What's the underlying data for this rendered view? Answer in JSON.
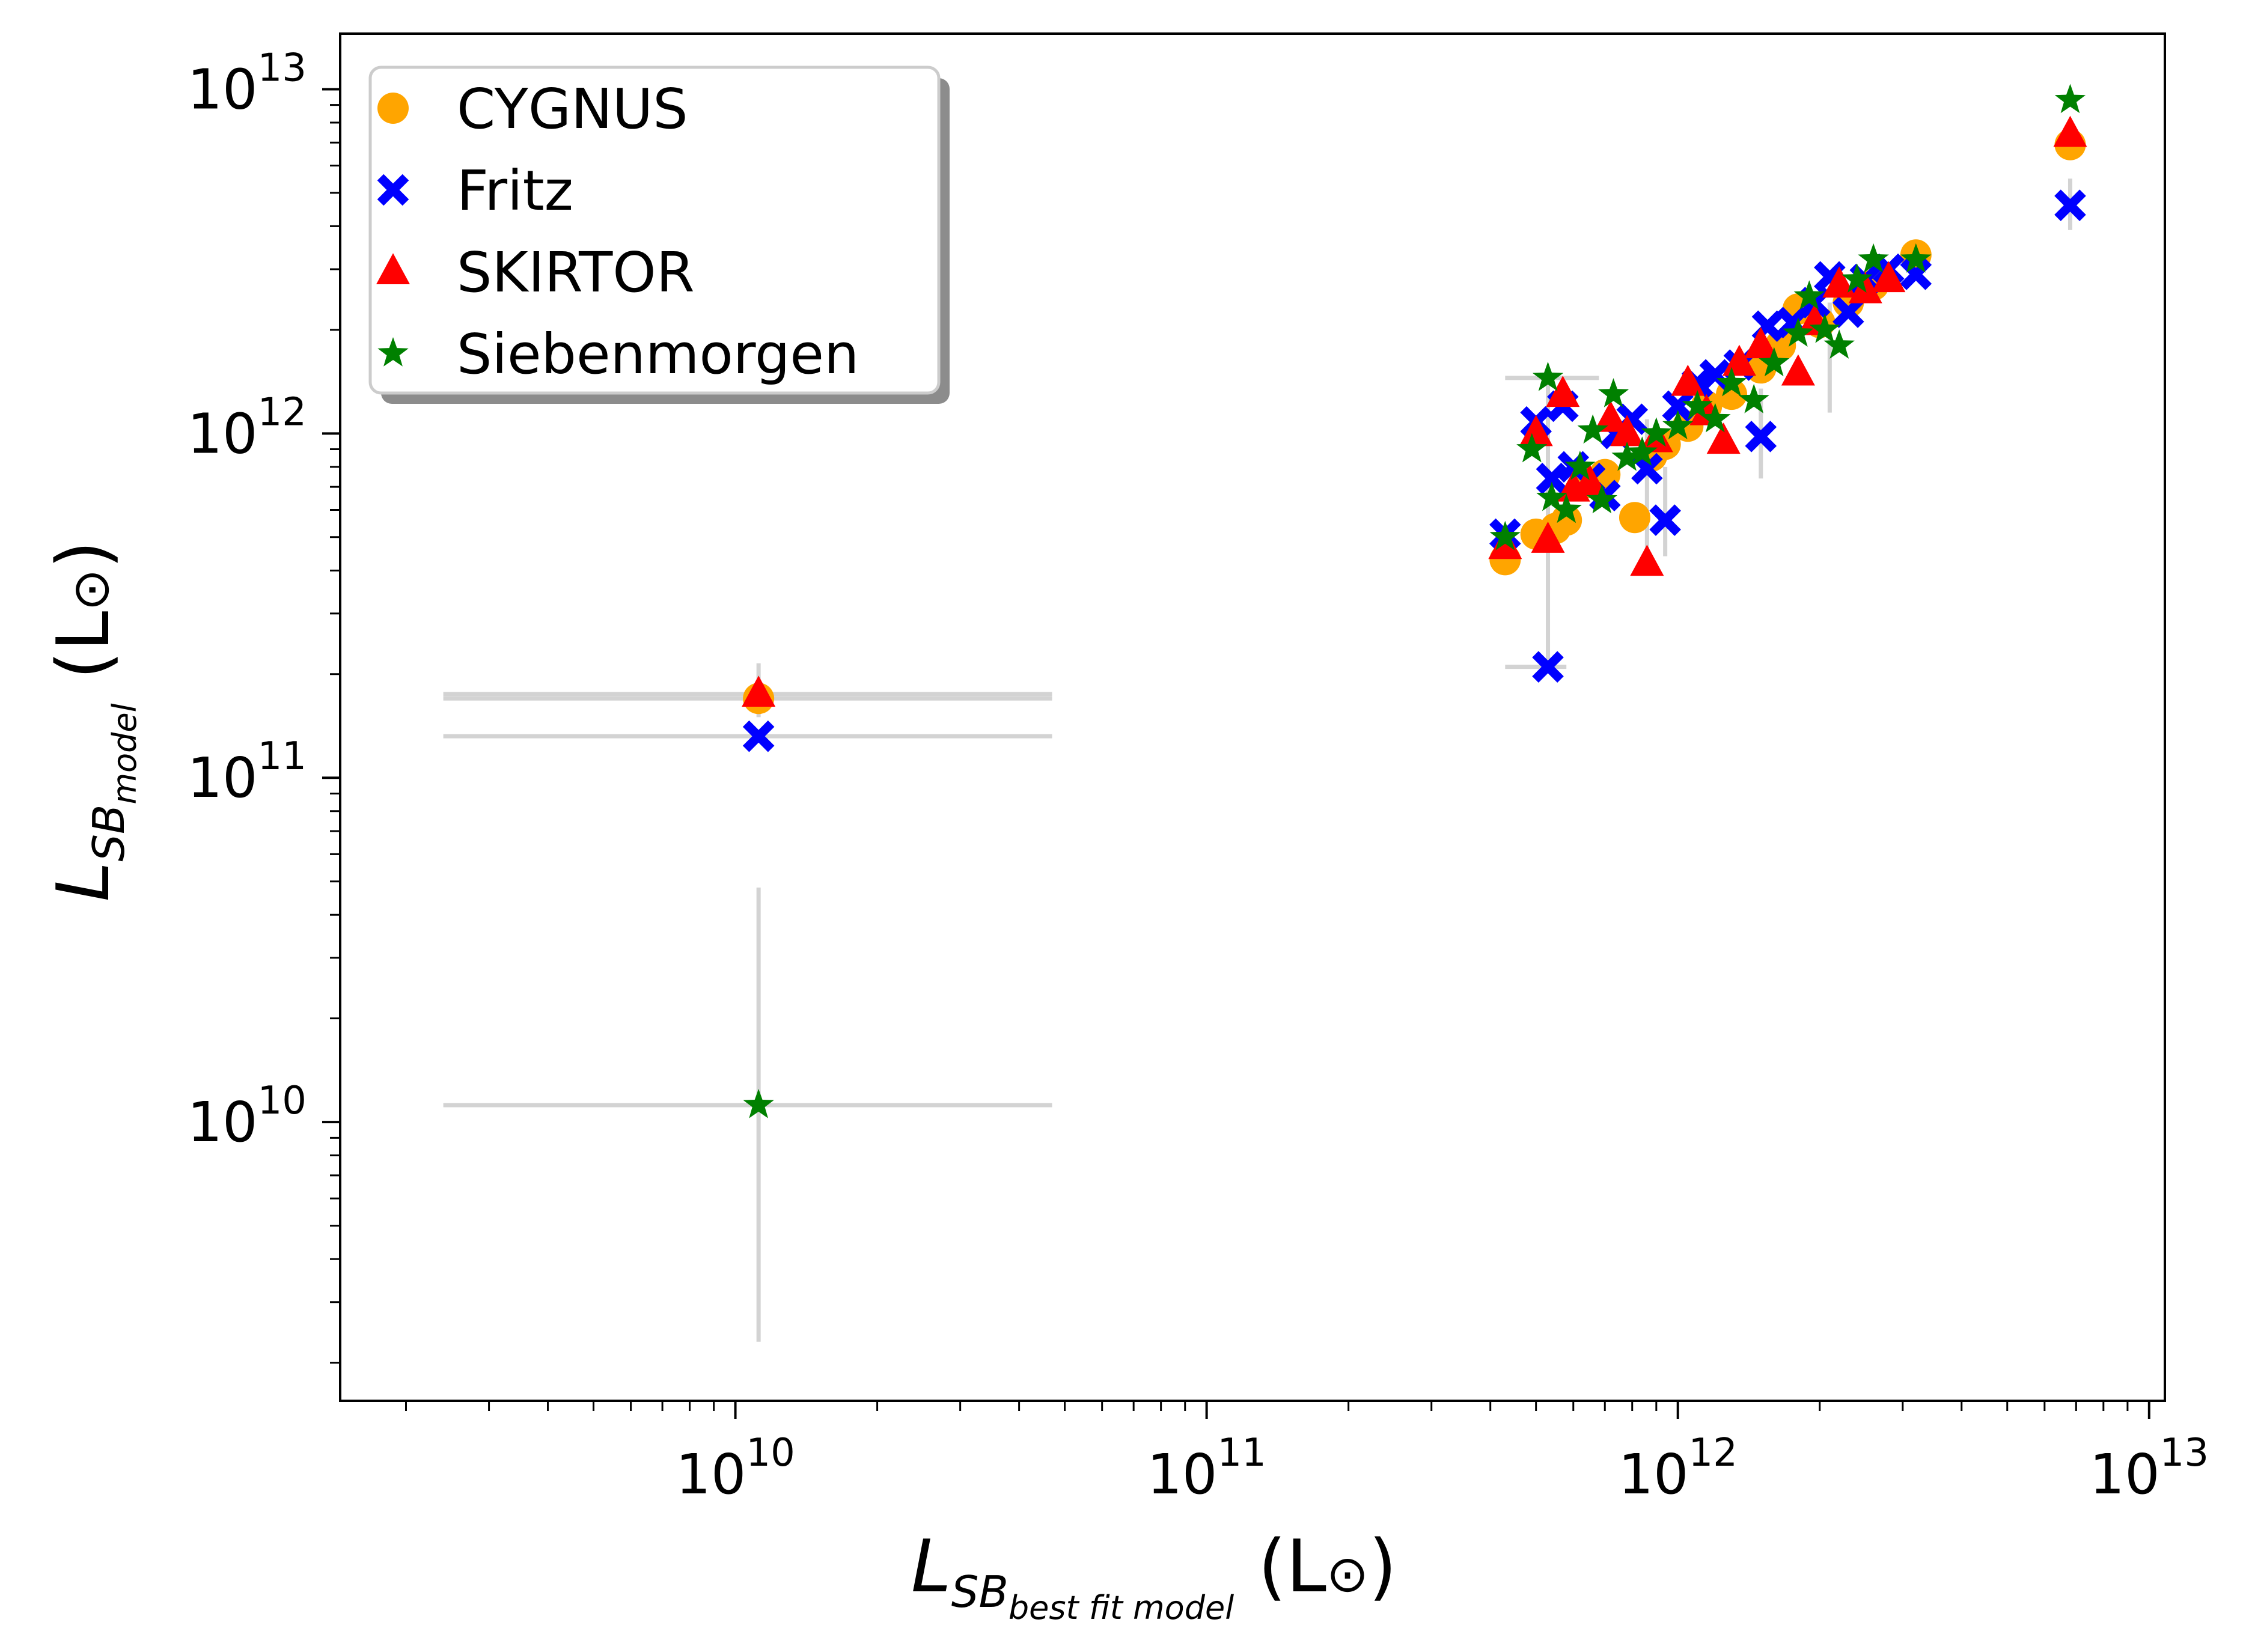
{
  "chart_data": {
    "type": "scatter",
    "title": "",
    "xscale": "log",
    "yscale": "log",
    "xlabel": {
      "main": "L",
      "sub": "SB",
      "subsub": "best fit model",
      "unit": "(L",
      "sun": "⊙",
      "close": ")"
    },
    "ylabel": {
      "main": "L",
      "sub": "SB",
      "subsub": "model",
      "unit": "(L",
      "sun": "⊙",
      "close": ")"
    },
    "xlim": [
      1450000000.0,
      10800000000000.0
    ],
    "ylim": [
      1550000000.0,
      14500000000000.0
    ],
    "major_exponents": [
      10,
      11,
      12,
      13
    ],
    "tick_base": "10",
    "legend_position": "upper-left",
    "series": [
      {
        "name": "CYGNUS",
        "marker": "circle",
        "color": "#ffa500",
        "points": [
          [
            11200000000.0,
            170000000000.0
          ],
          [
            430000000000.0,
            430000000000.0
          ],
          [
            500000000000.0,
            510000000000.0
          ],
          [
            550000000000.0,
            530000000000.0
          ],
          [
            580000000000.0,
            560000000000.0
          ],
          [
            650000000000.0,
            720000000000.0
          ],
          [
            700000000000.0,
            760000000000.0
          ],
          [
            810000000000.0,
            570000000000.0
          ],
          [
            880000000000.0,
            860000000000.0
          ],
          [
            940000000000.0,
            930000000000.0
          ],
          [
            1050000000000.0,
            1050000000000.0
          ],
          [
            1150000000000.0,
            1200000000000.0
          ],
          [
            1300000000000.0,
            1300000000000.0
          ],
          [
            1500000000000.0,
            1550000000000.0
          ],
          [
            1650000000000.0,
            1800000000000.0
          ],
          [
            1800000000000.0,
            2300000000000.0
          ],
          [
            2000000000000.0,
            2100000000000.0
          ],
          [
            2300000000000.0,
            2400000000000.0
          ],
          [
            2600000000000.0,
            2700000000000.0
          ],
          [
            3200000000000.0,
            3300000000000.0
          ],
          [
            6800000000000.0,
            6900000000000.0
          ]
        ]
      },
      {
        "name": "Fritz",
        "marker": "x",
        "color": "#0000ff",
        "points": [
          [
            11200000000.0,
            132000000000.0
          ],
          [
            430000000000.0,
            510000000000.0
          ],
          [
            500000000000.0,
            1080000000000.0
          ],
          [
            530000000000.0,
            210000000000.0
          ],
          [
            540000000000.0,
            740000000000.0
          ],
          [
            570000000000.0,
            1200000000000.0
          ],
          [
            600000000000.0,
            800000000000.0
          ],
          [
            650000000000.0,
            740000000000.0
          ],
          [
            700000000000.0,
            660000000000.0
          ],
          [
            740000000000.0,
            1000000000000.0
          ],
          [
            800000000000.0,
            1100000000000.0
          ],
          [
            860000000000.0,
            790000000000.0
          ],
          [
            940000000000.0,
            560000000000.0
          ],
          [
            1000000000000.0,
            1200000000000.0
          ],
          [
            1100000000000.0,
            1400000000000.0
          ],
          [
            1200000000000.0,
            1480000000000.0
          ],
          [
            1350000000000.0,
            1580000000000.0
          ],
          [
            1500000000000.0,
            980000000000.0
          ],
          [
            1550000000000.0,
            2050000000000.0
          ],
          [
            1750000000000.0,
            2100000000000.0
          ],
          [
            1950000000000.0,
            2400000000000.0
          ],
          [
            2100000000000.0,
            2850000000000.0
          ],
          [
            2300000000000.0,
            2250000000000.0
          ],
          [
            2500000000000.0,
            2800000000000.0
          ],
          [
            2800000000000.0,
            3000000000000.0
          ],
          [
            3200000000000.0,
            2900000000000.0
          ],
          [
            6800000000000.0,
            4600000000000.0
          ]
        ]
      },
      {
        "name": "SKIRTOR",
        "marker": "triangle",
        "color": "#ff0000",
        "points": [
          [
            11200000000.0,
            175000000000.0
          ],
          [
            430000000000.0,
            470000000000.0
          ],
          [
            500000000000.0,
            1000000000000.0
          ],
          [
            530000000000.0,
            490000000000.0
          ],
          [
            570000000000.0,
            1300000000000.0
          ],
          [
            600000000000.0,
            690000000000.0
          ],
          [
            650000000000.0,
            720000000000.0
          ],
          [
            720000000000.0,
            1100000000000.0
          ],
          [
            780000000000.0,
            1000000000000.0
          ],
          [
            860000000000.0,
            420000000000.0
          ],
          [
            900000000000.0,
            960000000000.0
          ],
          [
            1050000000000.0,
            1400000000000.0
          ],
          [
            1150000000000.0,
            1150000000000.0
          ],
          [
            1250000000000.0,
            950000000000.0
          ],
          [
            1350000000000.0,
            1600000000000.0
          ],
          [
            1500000000000.0,
            1800000000000.0
          ],
          [
            1800000000000.0,
            1500000000000.0
          ],
          [
            1950000000000.0,
            2100000000000.0
          ],
          [
            2200000000000.0,
            2700000000000.0
          ],
          [
            2500000000000.0,
            2600000000000.0
          ],
          [
            2800000000000.0,
            2800000000000.0
          ],
          [
            6800000000000.0,
            7400000000000.0
          ]
        ]
      },
      {
        "name": "Siebenmorgen",
        "marker": "star",
        "color": "#008000",
        "points": [
          [
            11200000000.0,
            11200000000.0
          ],
          [
            430000000000.0,
            500000000000.0
          ],
          [
            490000000000.0,
            900000000000.0
          ],
          [
            530000000000.0,
            1450000000000.0
          ],
          [
            540000000000.0,
            650000000000.0
          ],
          [
            580000000000.0,
            600000000000.0
          ],
          [
            620000000000.0,
            800000000000.0
          ],
          [
            660000000000.0,
            1020000000000.0
          ],
          [
            690000000000.0,
            640000000000.0
          ],
          [
            730000000000.0,
            1300000000000.0
          ],
          [
            780000000000.0,
            850000000000.0
          ],
          [
            840000000000.0,
            880000000000.0
          ],
          [
            900000000000.0,
            1000000000000.0
          ],
          [
            1000000000000.0,
            1050000000000.0
          ],
          [
            1100000000000.0,
            1200000000000.0
          ],
          [
            1200000000000.0,
            1100000000000.0
          ],
          [
            1300000000000.0,
            1400000000000.0
          ],
          [
            1450000000000.0,
            1250000000000.0
          ],
          [
            1600000000000.0,
            1600000000000.0
          ],
          [
            1800000000000.0,
            1950000000000.0
          ],
          [
            1900000000000.0,
            2500000000000.0
          ],
          [
            2050000000000.0,
            2000000000000.0
          ],
          [
            2200000000000.0,
            1800000000000.0
          ],
          [
            2400000000000.0,
            2800000000000.0
          ],
          [
            2600000000000.0,
            3200000000000.0
          ],
          [
            3200000000000.0,
            3200000000000.0
          ],
          [
            6800000000000.0,
            9300000000000.0
          ]
        ]
      }
    ],
    "error_bars": [
      {
        "x": 11200000000.0,
        "y": 175000000000.0,
        "xerr": [
          2400000000.0,
          47000000000.0
        ]
      },
      {
        "x": 11200000000.0,
        "y": 170000000000.0,
        "xerr": [
          2400000000.0,
          47000000000.0
        ]
      },
      {
        "x": 11200000000.0,
        "y": 132000000000.0,
        "xerr": [
          2400000000.0,
          47000000000.0
        ]
      },
      {
        "x": 11200000000.0,
        "y": 11200000000.0,
        "xerr": [
          2400000000.0,
          47000000000.0
        ],
        "yerr": [
          2300000000.0,
          48000000000.0
        ]
      },
      {
        "x": 11200000000.0,
        "y": 175000000000.0,
        "yerr": [
          150000000000.0,
          215000000000.0
        ]
      },
      {
        "x": 530000000000.0,
        "y": 490000000000.0,
        "yerr": [
          210000000000.0,
          1450000000000.0
        ]
      },
      {
        "x": 530000000000.0,
        "y": 1450000000000.0,
        "xerr": [
          430000000000.0,
          680000000000.0
        ]
      },
      {
        "x": 530000000000.0,
        "y": 210000000000.0,
        "xerr": [
          430000000000.0,
          580000000000.0
        ]
      },
      {
        "x": 860000000000.0,
        "y": 600000000000.0,
        "yerr": [
          420000000000.0,
          1100000000000.0
        ]
      },
      {
        "x": 940000000000.0,
        "y": 560000000000.0,
        "yerr": [
          440000000000.0,
          800000000000.0
        ]
      },
      {
        "x": 1500000000000.0,
        "y": 980000000000.0,
        "yerr": [
          740000000000.0,
          1350000000000.0
        ]
      },
      {
        "x": 2100000000000.0,
        "y": 1800000000000.0,
        "yerr": [
          1150000000000.0,
          2400000000000.0
        ]
      },
      {
        "x": 6800000000000.0,
        "y": 4600000000000.0,
        "yerr": [
          3900000000000.0,
          5500000000000.0
        ]
      }
    ]
  }
}
